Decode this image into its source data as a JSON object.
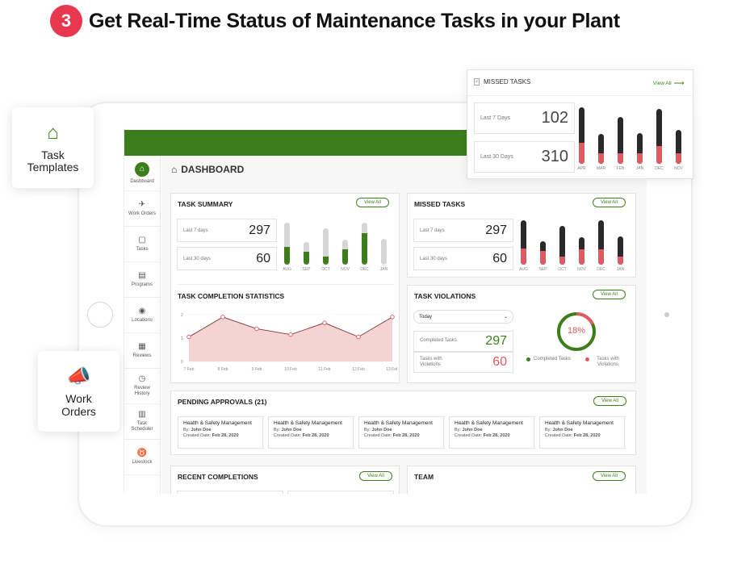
{
  "headline": {
    "step": "3",
    "title": "Get Real-Time Status of Maintenance Tasks in your Plant"
  },
  "colors": {
    "brand_green": "#3d7e1c",
    "red": "#e05a62",
    "dark": "#2a2a2a",
    "light_bar": "#d6d6d6",
    "step_badge": "#e8384f"
  },
  "float_cards": {
    "task_templates": {
      "icon": "home-icon",
      "label": "Task\nTemplates"
    },
    "work_orders": {
      "icon": "megaphone-icon",
      "label": "Work\nOrders"
    }
  },
  "sidebar": {
    "items": [
      {
        "label": "Dashboard",
        "icon": "home-icon",
        "glyph": "⌂"
      },
      {
        "label": "Work Orders",
        "icon": "megaphone-icon",
        "glyph": "✈"
      },
      {
        "label": "Tasks",
        "icon": "checklist-icon",
        "glyph": "▢"
      },
      {
        "label": "Programs",
        "icon": "document-icon",
        "glyph": "▤"
      },
      {
        "label": "Locations",
        "icon": "pin-icon",
        "glyph": "◉"
      },
      {
        "label": "Reviews",
        "icon": "review-icon",
        "glyph": "▦"
      },
      {
        "label": "Review History",
        "icon": "history-icon",
        "glyph": "◷"
      },
      {
        "label": "Task Scheduler",
        "icon": "calendar-icon",
        "glyph": "▥"
      },
      {
        "label": "Livestock",
        "icon": "livestock-icon",
        "glyph": "♉"
      }
    ]
  },
  "dashboard": {
    "title": "DASHBOARD"
  },
  "view_all": "View All",
  "task_summary": {
    "title": "TASK SUMMARY",
    "last7_label": "Last 7 days",
    "last7_value": "297",
    "last30_label": "Last 30 days",
    "last30_value": "60",
    "months": [
      "AUG",
      "SEP",
      "OCT",
      "NOV",
      "DEC",
      "JAN"
    ],
    "totals": [
      0.9,
      0.48,
      0.78,
      0.53,
      0.9,
      0.55
    ],
    "parts": [
      0.38,
      0.28,
      0.18,
      0.33,
      0.68,
      0.0
    ]
  },
  "missed_tasks": {
    "title": "MISSED TASKS",
    "last7_label": "Last 7 days",
    "last7_value": "297",
    "last30_label": "Last 30 days",
    "last30_value": "60",
    "months": [
      "AUG",
      "SEP",
      "OCT",
      "NOV",
      "DEC",
      "JAN"
    ],
    "totals": [
      0.95,
      0.5,
      0.82,
      0.58,
      0.95,
      0.6
    ],
    "parts": [
      0.35,
      0.3,
      0.18,
      0.32,
      0.32,
      0.18
    ]
  },
  "missed_float": {
    "title": "MISSED TASKS",
    "last7_label": "Last 7 Days",
    "last7_value": "102",
    "last30_label": "Last 30 Days",
    "last30_value": "310",
    "months": [
      "APR",
      "MAR",
      "FEB",
      "JAN",
      "DEC",
      "NOV"
    ],
    "totals": [
      0.95,
      0.5,
      0.78,
      0.52,
      0.92,
      0.57
    ],
    "parts": [
      0.35,
      0.18,
      0.18,
      0.18,
      0.3,
      0.18
    ]
  },
  "completion_stats": {
    "title": "TASK COMPLETION STATISTICS",
    "y_ticks": [
      "2",
      "1",
      "0"
    ],
    "x_ticks": [
      "7 Feb",
      "8 Feb",
      "9 Feb",
      "10 Feb",
      "11 Feb",
      "12 Feb",
      "13 Feb"
    ],
    "chart_data": {
      "type": "area",
      "x": [
        "7 Feb",
        "8 Feb",
        "9 Feb",
        "10 Feb",
        "11 Feb",
        "12 Feb",
        "13 Feb"
      ],
      "values": [
        1.05,
        1.9,
        1.4,
        1.15,
        1.65,
        1.05,
        1.9
      ],
      "ylim": [
        0,
        2
      ]
    }
  },
  "violations": {
    "title": "TASK VIOLATIONS",
    "select_value": "Today",
    "completed_label": "Completed Tasks",
    "completed_value": "297",
    "violation_label": "Tasks with Violations",
    "violation_value": "60",
    "percent": "18%",
    "percent_value": 0.18,
    "legend_completed": "Completed Tasks",
    "legend_violations": "Tasks with Violations"
  },
  "pending": {
    "title": "PENDING APPROVALS (21)",
    "items": [
      {
        "title": "Health & Safety Management",
        "by_label": "By: ",
        "by": "John Doe",
        "date_label": "Created Date: ",
        "date": "Feb 28, 2020"
      },
      {
        "title": "Health & Safety Management",
        "by_label": "By: ",
        "by": "John Doe",
        "date_label": "Created Date: ",
        "date": "Feb 28, 2020"
      },
      {
        "title": "Health & Safety Management",
        "by_label": "By: ",
        "by": "John Doe",
        "date_label": "Created Date: ",
        "date": "Feb 28, 2020"
      },
      {
        "title": "Health & Safety Management",
        "by_label": "By: ",
        "by": "John Doe",
        "date_label": "Created Date: ",
        "date": "Feb 28, 2020"
      },
      {
        "title": "Health & Safety Management",
        "by_label": "By: ",
        "by": "John Doe",
        "date_label": "Created Date: ",
        "date": "Feb 28, 2020"
      }
    ]
  },
  "recent": {
    "title": "RECENT COMPLETIONS"
  },
  "team": {
    "title": "TEAM"
  }
}
